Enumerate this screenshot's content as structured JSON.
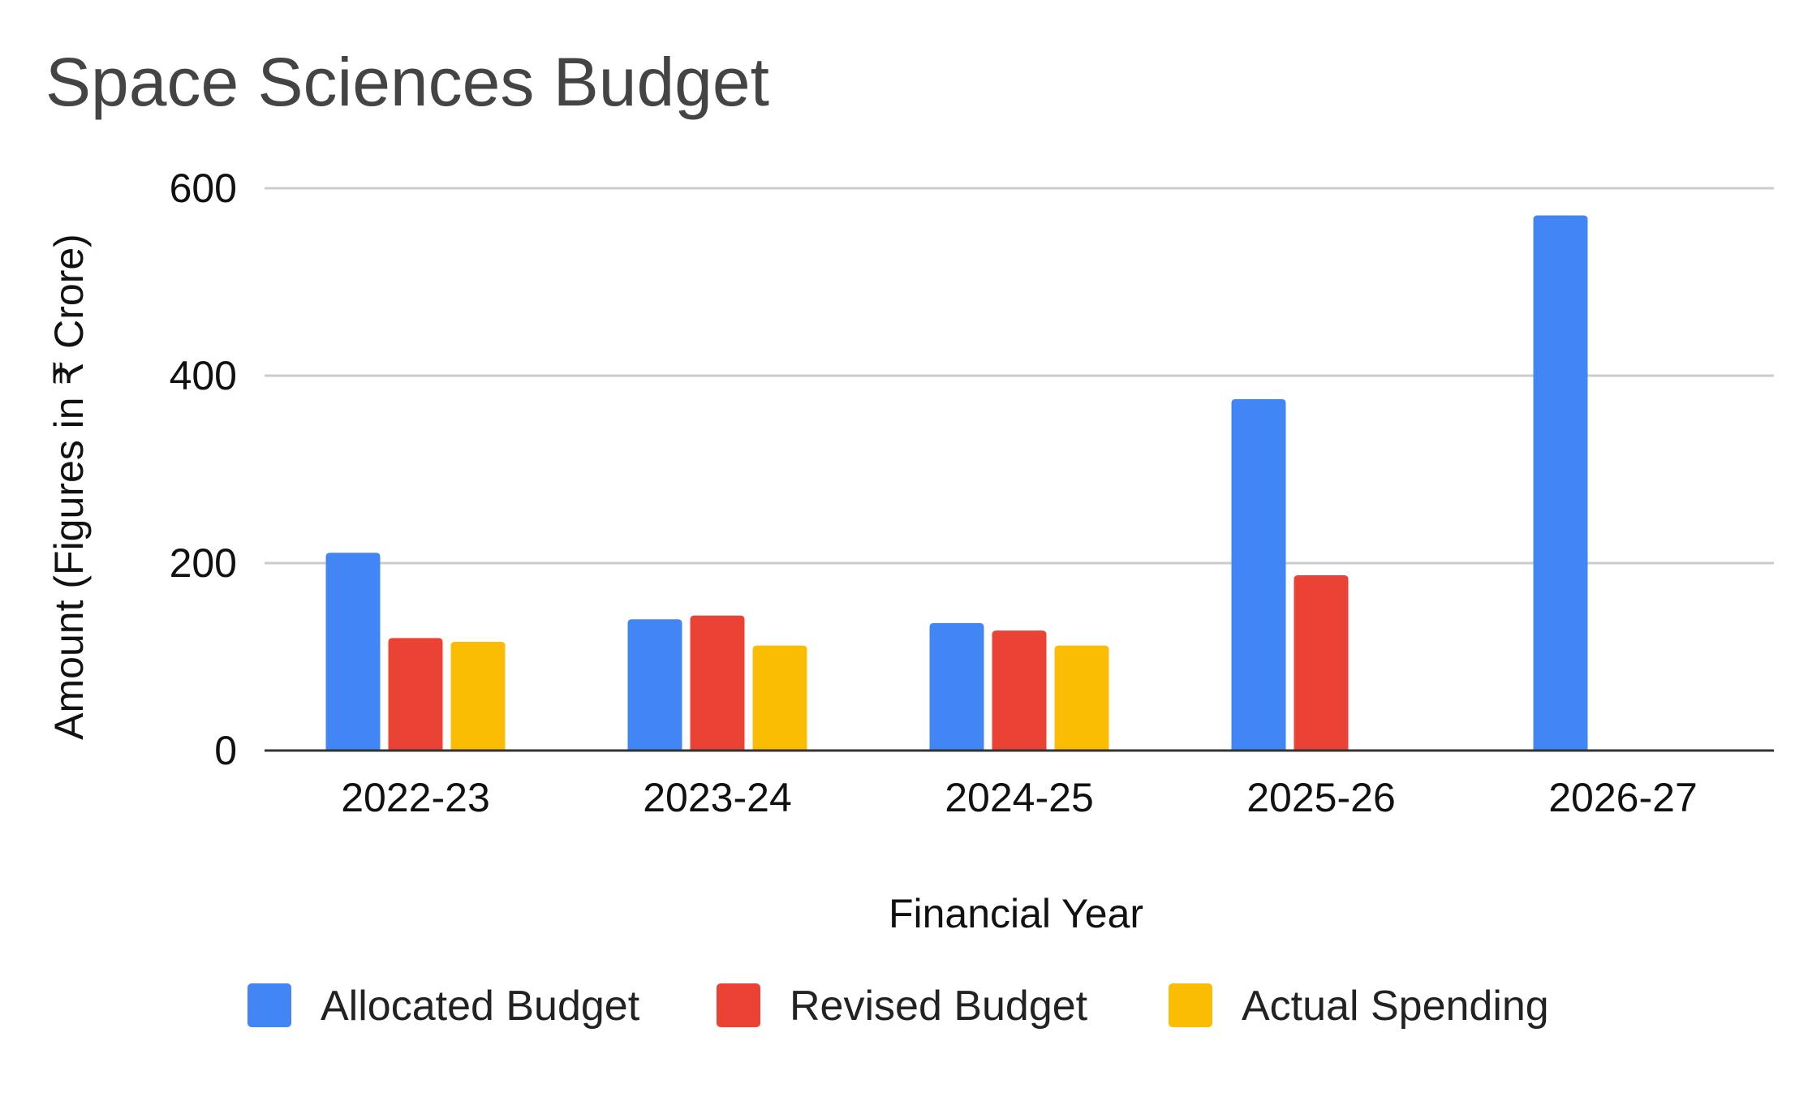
{
  "chart_data": {
    "type": "bar",
    "title": "Space Sciences Budget",
    "xlabel": "Financial Year",
    "ylabel": "Amount (Figures in ₹ Crore)",
    "ylim": [
      0,
      600
    ],
    "yticks": [
      0,
      200,
      400,
      600
    ],
    "ytick_labels": [
      "0",
      "200",
      "400",
      "600"
    ],
    "grid": true,
    "legend_position": "bottom",
    "categories": [
      "2022-23",
      "2023-24",
      "2024-25",
      "2025-26",
      "2026-27"
    ],
    "series": [
      {
        "name": "Allocated Budget",
        "color": "#4285F4",
        "values": [
          211,
          140,
          136,
          375,
          571
        ]
      },
      {
        "name": "Revised Budget",
        "color": "#EA4335",
        "values": [
          120,
          144,
          128,
          187,
          null
        ]
      },
      {
        "name": "Actual Spending",
        "color": "#FBBC04",
        "values": [
          116,
          112,
          112,
          null,
          null
        ]
      }
    ]
  }
}
